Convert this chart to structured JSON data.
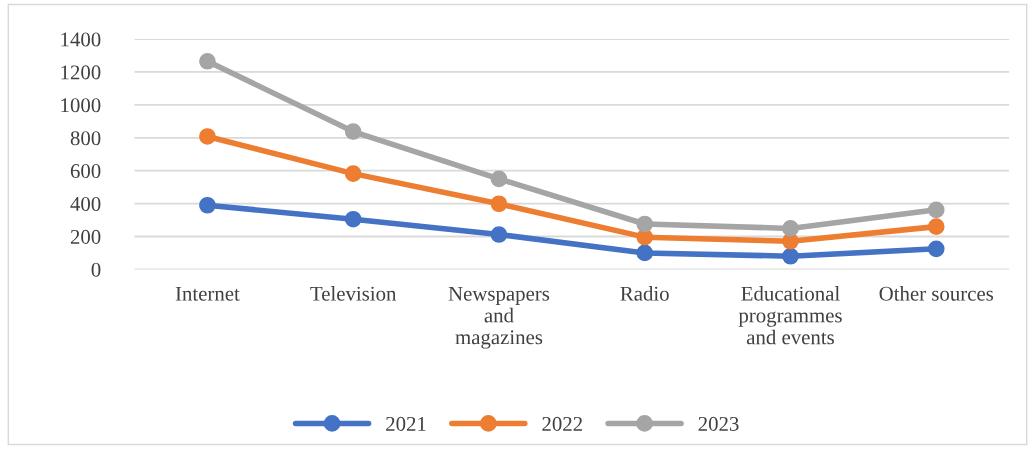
{
  "chart_data": {
    "type": "line",
    "categories": [
      "Internet",
      "Television",
      "Newspapers\nand\nmagazines",
      "Radio",
      "Educational\nprogrammes\nand events",
      "Other sources"
    ],
    "series": [
      {
        "name": "2021",
        "color": "#4472c4",
        "values": [
          390,
          305,
          212,
          100,
          80,
          125
        ]
      },
      {
        "name": "2022",
        "color": "#ed7d31",
        "values": [
          808,
          582,
          399,
          196,
          171,
          260
        ]
      },
      {
        "name": "2023",
        "color": "#a5a5a5",
        "values": [
          1265,
          838,
          550,
          276,
          249,
          362
        ]
      }
    ],
    "ylim": [
      0,
      1400
    ],
    "yticks": [
      0,
      200,
      400,
      600,
      800,
      1000,
      1200,
      1400
    ],
    "grid": "y",
    "legend": "bottom",
    "marker": "circle",
    "line_style": "solid"
  }
}
